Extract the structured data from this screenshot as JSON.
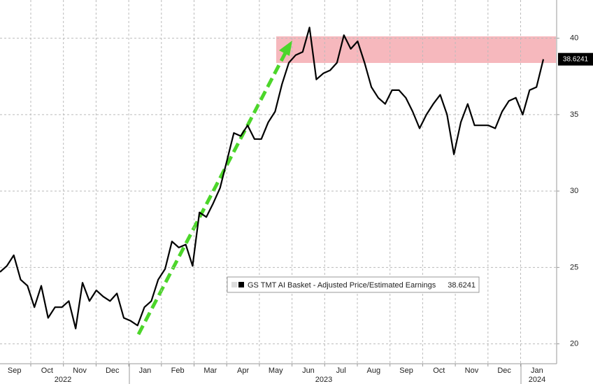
{
  "chart_data": {
    "type": "line",
    "months": [
      "Sep",
      "Oct",
      "Nov",
      "Dec",
      "Jan",
      "Feb",
      "Mar",
      "Apr",
      "May",
      "Jun",
      "Jul",
      "Aug",
      "Sep",
      "Oct",
      "Nov",
      "Dec",
      "Jan"
    ],
    "years": [
      "2022",
      "2023",
      "2024"
    ],
    "series": [
      {
        "name": "GS TMT AI Basket - Adjusted Price/Estimated Earnings",
        "color": "#000000",
        "values": [
          24.7,
          25.1,
          25.8,
          24.2,
          23.8,
          22.4,
          23.8,
          21.7,
          22.4,
          22.4,
          22.8,
          21.0,
          24.0,
          22.8,
          23.5,
          23.1,
          22.8,
          23.3,
          21.7,
          21.5,
          21.2,
          22.4,
          22.8,
          24.2,
          24.9,
          26.7,
          26.3,
          26.5,
          25.1,
          28.6,
          28.3,
          29.2,
          30.2,
          32.0,
          33.8,
          33.6,
          34.3,
          33.4,
          33.4,
          34.5,
          35.2,
          37.0,
          38.4,
          38.9,
          39.1,
          40.7,
          37.3,
          37.7,
          37.9,
          38.4,
          40.2,
          39.3,
          39.8,
          38.4,
          36.8,
          36.1,
          35.7,
          36.6,
          36.6,
          36.1,
          35.2,
          34.1,
          35.0,
          35.7,
          36.3,
          35.0,
          32.4,
          34.5,
          35.7,
          34.3,
          34.3,
          34.3,
          34.1,
          35.2,
          35.9,
          36.1,
          35.0,
          36.6,
          36.8,
          38.6241
        ],
        "last_value_label": "38.6241"
      }
    ],
    "ylim": [
      18.7,
      42.5
    ],
    "yticks": [
      20,
      25,
      30,
      35,
      40
    ],
    "grid": true
  }
}
